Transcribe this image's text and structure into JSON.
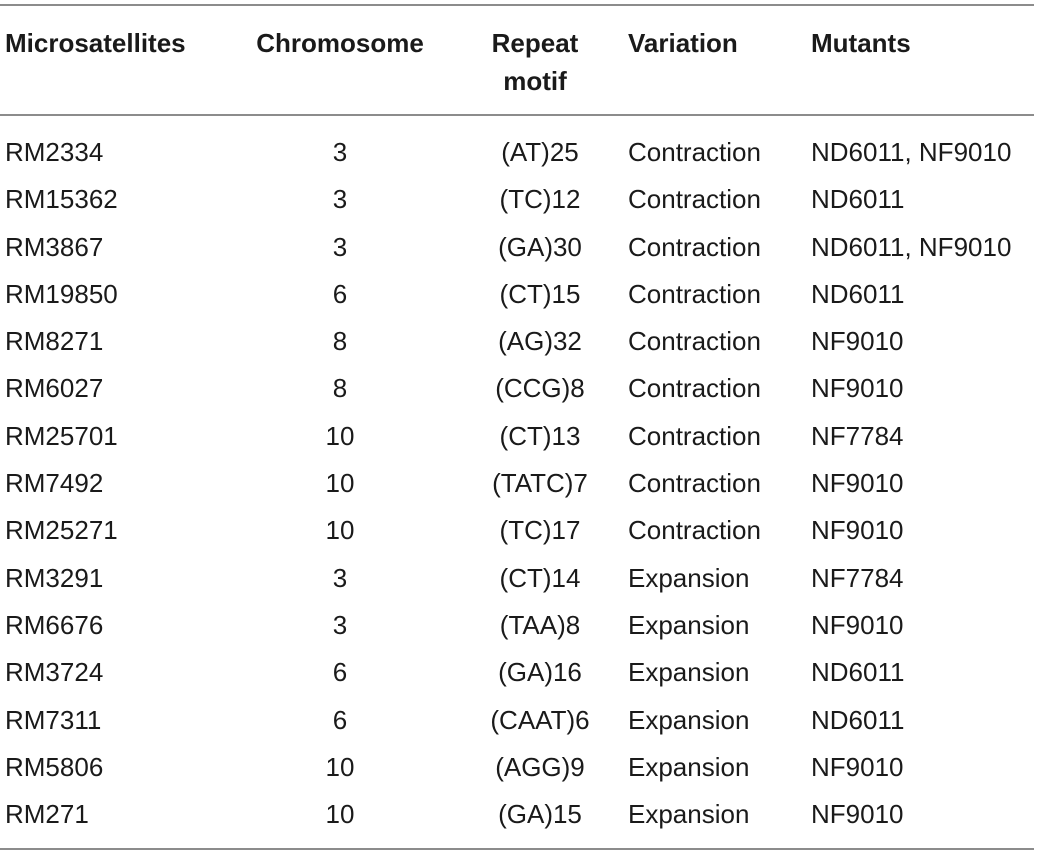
{
  "table": {
    "headers": [
      "Microsatellites",
      "Chromosome",
      "Repeat motif",
      "Variation",
      "Mutants"
    ],
    "rows": [
      [
        "RM2334",
        "3",
        "(AT)25",
        "Contraction",
        "ND6011, NF9010"
      ],
      [
        "RM15362",
        "3",
        "(TC)12",
        "Contraction",
        "ND6011"
      ],
      [
        "RM3867",
        "3",
        "(GA)30",
        "Contraction",
        "ND6011, NF9010"
      ],
      [
        "RM19850",
        "6",
        "(CT)15",
        "Contraction",
        "ND6011"
      ],
      [
        "RM8271",
        "8",
        "(AG)32",
        "Contraction",
        "NF9010"
      ],
      [
        "RM6027",
        "8",
        "(CCG)8",
        "Contraction",
        "NF9010"
      ],
      [
        "RM25701",
        "10",
        "(CT)13",
        "Contraction",
        "NF7784"
      ],
      [
        "RM7492",
        "10",
        "(TATC)7",
        "Contraction",
        "NF9010"
      ],
      [
        "RM25271",
        "10",
        "(TC)17",
        "Contraction",
        "NF9010"
      ],
      [
        "RM3291",
        "3",
        "(CT)14",
        "Expansion",
        "NF7784"
      ],
      [
        "RM6676",
        "3",
        "(TAA)8",
        "Expansion",
        "NF9010"
      ],
      [
        "RM3724",
        "6",
        "(GA)16",
        "Expansion",
        "ND6011"
      ],
      [
        "RM7311",
        "6",
        "(CAAT)6",
        "Expansion",
        "ND6011"
      ],
      [
        "RM5806",
        "10",
        "(AGG)9",
        "Expansion",
        "NF9010"
      ],
      [
        "RM271",
        "10",
        "(GA)15",
        "Expansion",
        "NF9010"
      ]
    ]
  }
}
